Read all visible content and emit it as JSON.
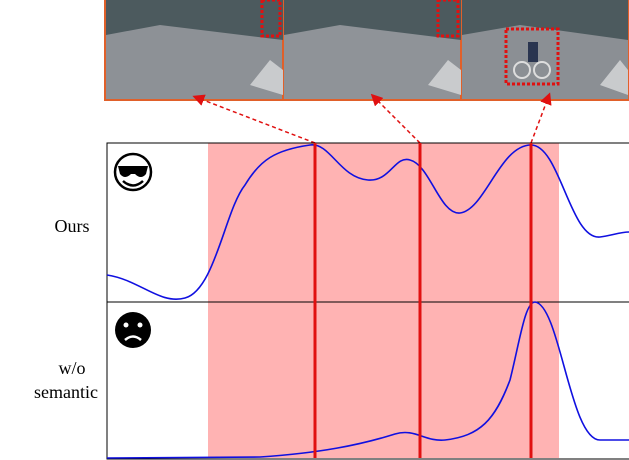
{
  "rows": [
    {
      "label": [
        "Ours"
      ]
    },
    {
      "label": [
        "w/o",
        "semantic"
      ]
    }
  ]
}
